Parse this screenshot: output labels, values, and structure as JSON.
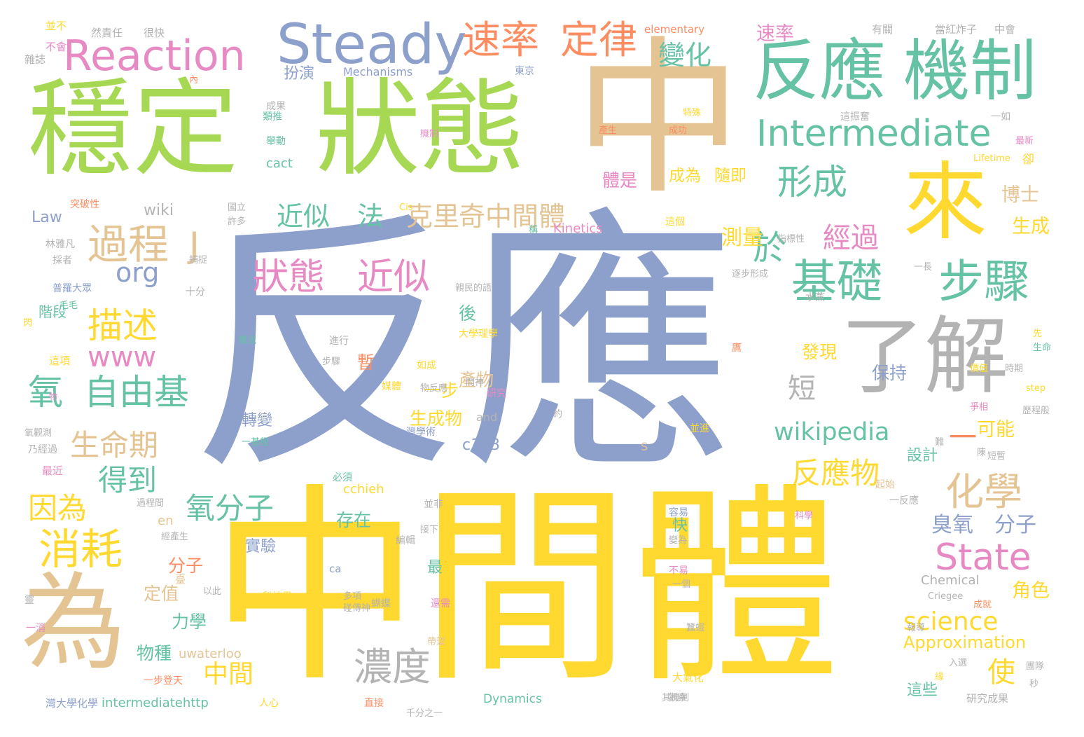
{
  "palette": {
    "blue": "#8da0cb",
    "tan": "#e5c494",
    "yellow": "#ffd92f",
    "green": "#a6d854",
    "teal": "#66c2a5",
    "gray": "#b3b3b3",
    "pink": "#e78ac3",
    "orange": "#fc8d62"
  },
  "words": [
    {
      "text": "反應",
      "color": "blue"
    },
    {
      "text": "中間體",
      "color": "yellow"
    },
    {
      "text": "中",
      "color": "tan"
    },
    {
      "text": "穩定",
      "color": "green"
    },
    {
      "text": "狀態",
      "color": "green"
    },
    {
      "text": "為",
      "color": "tan"
    },
    {
      "text": "來",
      "color": "yellow"
    },
    {
      "text": "了解",
      "color": "gray"
    },
    {
      "text": "反應",
      "color": "teal"
    },
    {
      "text": "機制",
      "color": "teal"
    },
    {
      "text": "Steady",
      "color": "blue"
    },
    {
      "text": "Reaction",
      "color": "pink"
    },
    {
      "text": "Intermediate",
      "color": "teal"
    },
    {
      "text": "基礎",
      "color": "teal"
    },
    {
      "text": "步驟",
      "color": "teal"
    },
    {
      "text": "速率",
      "color": "orange"
    },
    {
      "text": "定律",
      "color": "orange"
    },
    {
      "text": "變化",
      "color": "teal"
    },
    {
      "text": "形成",
      "color": "teal"
    },
    {
      "text": "過程",
      "color": "tan"
    },
    {
      "text": "J",
      "color": "tan"
    },
    {
      "text": "於",
      "color": "teal"
    },
    {
      "text": "狀態",
      "color": "pink"
    },
    {
      "text": "近似",
      "color": "pink"
    },
    {
      "text": "近似",
      "color": "teal"
    },
    {
      "text": "法",
      "color": "teal"
    },
    {
      "text": "克里",
      "color": "tan"
    },
    {
      "text": "奇中間體",
      "color": "tan"
    },
    {
      "text": "描述",
      "color": "yellow"
    },
    {
      "text": "org",
      "color": "blue"
    },
    {
      "text": "www",
      "color": "pink"
    },
    {
      "text": "氧",
      "color": "teal"
    },
    {
      "text": "自由基",
      "color": "teal"
    },
    {
      "text": "生命期",
      "color": "tan"
    },
    {
      "text": "得到",
      "color": "teal"
    },
    {
      "text": "消耗",
      "color": "yellow"
    },
    {
      "text": "因為",
      "color": "yellow"
    },
    {
      "text": "氧分子",
      "color": "teal"
    },
    {
      "text": "濃度",
      "color": "gray"
    },
    {
      "text": "wikipedia",
      "color": "teal"
    },
    {
      "text": "反應物",
      "color": "yellow"
    },
    {
      "text": "化學",
      "color": "tan"
    },
    {
      "text": "State",
      "color": "pink"
    },
    {
      "text": "science",
      "color": "yellow"
    },
    {
      "text": "Approximation",
      "color": "yellow"
    },
    {
      "text": "中間",
      "color": "yellow"
    },
    {
      "text": "使",
      "color": "yellow"
    },
    {
      "text": "經過",
      "color": "pink"
    },
    {
      "text": "測量",
      "color": "yellow"
    },
    {
      "text": "短",
      "color": "gray"
    },
    {
      "text": "臭氧",
      "color": "blue"
    },
    {
      "text": "分子",
      "color": "blue"
    },
    {
      "text": "生成",
      "color": "yellow"
    },
    {
      "text": "博士",
      "color": "tan"
    },
    {
      "text": "一",
      "color": "orange"
    },
    {
      "text": "角色",
      "color": "yellow"
    },
    {
      "text": "可能",
      "color": "yellow"
    },
    {
      "text": "速率",
      "color": "pink"
    },
    {
      "text": "扮演",
      "color": "blue"
    },
    {
      "text": "Mechanisms",
      "color": "blue"
    },
    {
      "text": "wiki",
      "color": "gray"
    },
    {
      "text": "Law",
      "color": "blue"
    },
    {
      "text": "體是",
      "color": "pink"
    },
    {
      "text": "成為",
      "color": "yellow"
    },
    {
      "text": "隨即",
      "color": "yellow"
    },
    {
      "text": "產物",
      "color": "tan"
    },
    {
      "text": "後",
      "color": "teal"
    },
    {
      "text": "一步",
      "color": "yellow"
    },
    {
      "text": "生成物",
      "color": "yellow"
    },
    {
      "text": "存在",
      "color": "teal"
    },
    {
      "text": "發現",
      "color": "yellow"
    },
    {
      "text": "保持",
      "color": "blue"
    },
    {
      "text": "階段",
      "color": "teal"
    },
    {
      "text": "暫",
      "color": "orange"
    },
    {
      "text": "轉變",
      "color": "blue"
    },
    {
      "text": "實驗",
      "color": "blue"
    },
    {
      "text": "最",
      "color": "teal"
    },
    {
      "text": "快",
      "color": "teal"
    },
    {
      "text": "分子",
      "color": "orange"
    },
    {
      "text": "定值",
      "color": "tan"
    },
    {
      "text": "力學",
      "color": "teal"
    },
    {
      "text": "物種",
      "color": "teal"
    },
    {
      "text": "en",
      "color": "tan"
    },
    {
      "text": "設計",
      "color": "teal"
    },
    {
      "text": "這些",
      "color": "teal"
    },
    {
      "text": "Kinetics",
      "color": "pink"
    },
    {
      "text": "Dynamics",
      "color": "teal"
    },
    {
      "text": "intermediatehttp",
      "color": "teal"
    },
    {
      "text": "uwaterloo",
      "color": "tan"
    },
    {
      "text": "Chemical",
      "color": "gray"
    },
    {
      "text": "cchieh",
      "color": "yellow"
    },
    {
      "text": "c123",
      "color": "blue"
    },
    {
      "text": "cact",
      "color": "teal"
    },
    {
      "text": "elementary",
      "color": "orange"
    },
    {
      "text": "Lifetime",
      "color": "yellow"
    },
    {
      "text": "Criegee",
      "color": "gray"
    },
    {
      "text": "step",
      "color": "yellow"
    },
    {
      "text": "and",
      "color": "gray"
    },
    {
      "text": "ca",
      "color": "blue"
    },
    {
      "text": "S",
      "color": "tan"
    },
    {
      "text": "Cis",
      "color": "yellow"
    },
    {
      "text": "卻",
      "color": "yellow"
    },
    {
      "text": "並不",
      "color": "yellow"
    },
    {
      "text": "然責任",
      "color": "gray"
    },
    {
      "text": "很快",
      "color": "gray"
    },
    {
      "text": "不會",
      "color": "pink"
    },
    {
      "text": "雜誌",
      "color": "gray"
    },
    {
      "text": "內",
      "color": "orange"
    },
    {
      "text": "東京",
      "color": "blue"
    },
    {
      "text": "有關",
      "color": "gray"
    },
    {
      "text": "當紅炸子",
      "color": "gray"
    },
    {
      "text": "中會",
      "color": "gray"
    },
    {
      "text": "成果",
      "color": "gray"
    },
    {
      "text": "類推",
      "color": "teal"
    },
    {
      "text": "舉動",
      "color": "teal"
    },
    {
      "text": "特殊",
      "color": "yellow"
    },
    {
      "text": "產生",
      "color": "orange"
    },
    {
      "text": "成功",
      "color": "orange"
    },
    {
      "text": "機制",
      "color": "pink"
    },
    {
      "text": "這振奮",
      "color": "gray"
    },
    {
      "text": "一如",
      "color": "gray"
    },
    {
      "text": "最新",
      "color": "pink"
    },
    {
      "text": "突破性",
      "color": "orange"
    },
    {
      "text": "國立",
      "color": "gray"
    },
    {
      "text": "許多",
      "color": "gray"
    },
    {
      "text": "稱",
      "color": "teal"
    },
    {
      "text": "這個",
      "color": "yellow"
    },
    {
      "text": "林雅凡",
      "color": "gray"
    },
    {
      "text": "採者",
      "color": "gray"
    },
    {
      "text": "指標性",
      "color": "gray"
    },
    {
      "text": "一長",
      "color": "gray"
    },
    {
      "text": "捕捉",
      "color": "gray"
    },
    {
      "text": "十分",
      "color": "gray"
    },
    {
      "text": "逐步形成",
      "color": "gray"
    },
    {
      "text": "親民的語",
      "color": "gray"
    },
    {
      "text": "普羅大眾",
      "color": "blue"
    },
    {
      "text": "毛毛",
      "color": "teal"
    },
    {
      "text": "閃",
      "color": "yellow"
    },
    {
      "text": "水蒸",
      "color": "gray"
    },
    {
      "text": "情況",
      "color": "teal"
    },
    {
      "text": "進行",
      "color": "gray"
    },
    {
      "text": "大學理學",
      "color": "yellow"
    },
    {
      "text": "這項",
      "color": "yellow"
    },
    {
      "text": "步驟",
      "color": "gray"
    },
    {
      "text": "如成",
      "color": "yellow"
    },
    {
      "text": "問神",
      "color": "gray"
    },
    {
      "text": "研究",
      "color": "pink"
    },
    {
      "text": "價值",
      "color": "yellow"
    },
    {
      "text": "時期",
      "color": "gray"
    },
    {
      "text": "生命",
      "color": "teal"
    },
    {
      "text": "先",
      "color": "yellow"
    },
    {
      "text": "爭相",
      "color": "pink"
    },
    {
      "text": "歷程般",
      "color": "gray"
    },
    {
      "text": "物反應",
      "color": "gray"
    },
    {
      "text": "媒體",
      "color": "yellow"
    },
    {
      "text": "灣學術",
      "color": "blue"
    },
    {
      "text": "約",
      "color": "gray"
    },
    {
      "text": "難",
      "color": "gray"
    },
    {
      "text": "氧觀測",
      "color": "gray"
    },
    {
      "text": "乃經過",
      "color": "gray"
    },
    {
      "text": "一基程",
      "color": "teal"
    },
    {
      "text": "並進",
      "color": "yellow"
    },
    {
      "text": "陳",
      "color": "gray"
    },
    {
      "text": "短暫",
      "color": "gray"
    },
    {
      "text": "最近",
      "color": "pink"
    },
    {
      "text": "必須",
      "color": "teal"
    },
    {
      "text": "過程間",
      "color": "gray"
    },
    {
      "text": "起始",
      "color": "tan"
    },
    {
      "text": "並非",
      "color": "gray"
    },
    {
      "text": "一反應",
      "color": "gray"
    },
    {
      "text": "科學",
      "color": "pink"
    },
    {
      "text": "容易",
      "color": "blue"
    },
    {
      "text": "經產生",
      "color": "gray"
    },
    {
      "text": "接下",
      "color": "gray"
    },
    {
      "text": "編輯",
      "color": "gray"
    },
    {
      "text": "變為",
      "color": "gray"
    },
    {
      "text": "不易",
      "color": "pink"
    },
    {
      "text": "一個",
      "color": "gray"
    },
    {
      "text": "以此",
      "color": "gray"
    },
    {
      "text": "蝴蝶",
      "color": "gray"
    },
    {
      "text": "科技界",
      "color": "yellow"
    },
    {
      "text": "多項",
      "color": "gray"
    },
    {
      "text": "碰傳神",
      "color": "gray"
    },
    {
      "text": "還需",
      "color": "pink"
    },
    {
      "text": "成就",
      "color": "orange"
    },
    {
      "text": "一消",
      "color": "pink"
    },
    {
      "text": "靈",
      "color": "gray"
    },
    {
      "text": "報導",
      "color": "gray"
    },
    {
      "text": "蠶蛾",
      "color": "gray"
    },
    {
      "text": "帶望",
      "color": "tan"
    },
    {
      "text": "團隊",
      "color": "gray"
    },
    {
      "text": "入選",
      "color": "gray"
    },
    {
      "text": "緣",
      "color": "yellow"
    },
    {
      "text": "秒",
      "color": "gray"
    },
    {
      "text": "大氣化",
      "color": "yellow"
    },
    {
      "text": "一步登天",
      "color": "orange"
    },
    {
      "text": "其機制",
      "color": "gray"
    },
    {
      "text": "研究成果",
      "color": "gray"
    },
    {
      "text": "人心",
      "color": "yellow"
    },
    {
      "text": "直接",
      "color": "orange"
    },
    {
      "text": "千分之一",
      "color": "gray"
    },
    {
      "text": "灣大學化學",
      "color": "blue"
    },
    {
      "text": "觀察",
      "color": "gray"
    },
    {
      "text": "臺",
      "color": "tan"
    },
    {
      "text": "鷹",
      "color": "orange"
    },
    {
      "text": "物",
      "color": "pink"
    }
  ]
}
